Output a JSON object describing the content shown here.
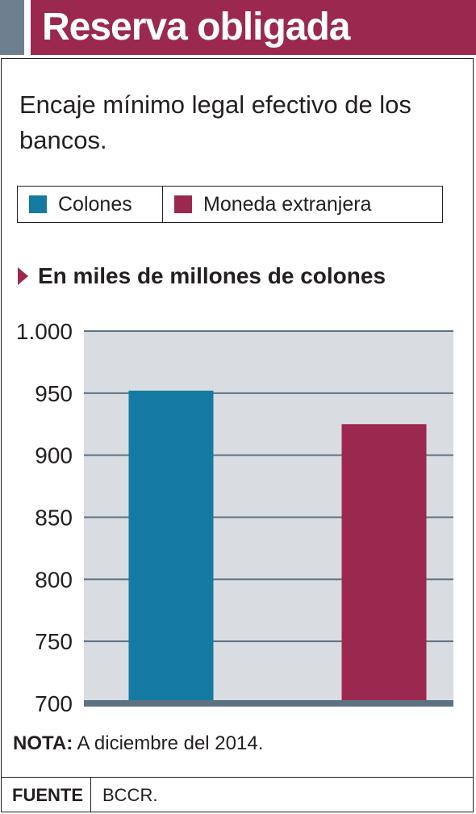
{
  "header": {
    "title": "Reserva obligada"
  },
  "subtitle": "Encaje mínimo legal efectivo de los bancos.",
  "legend": [
    {
      "label": "Colones",
      "color": "#157aa1"
    },
    {
      "label": "Moneda extranjera",
      "color": "#9b284f"
    }
  ],
  "unit_label": "En miles de millones de colones",
  "note": {
    "key": "NOTA:",
    "text": "A diciembre del 2014."
  },
  "source": {
    "key": "FUENTE",
    "value": "BCCR."
  },
  "colors": {
    "header": "#9b284f",
    "accent": "#6d7f8f",
    "plot_bg": "#d9dce1",
    "gridline": "#5c7283"
  },
  "chart_data": {
    "type": "bar",
    "categories": [
      "Colones",
      "Moneda extranjera"
    ],
    "values": [
      952,
      925
    ],
    "colors": [
      "#157aa1",
      "#9b284f"
    ],
    "ylim": [
      700,
      1000
    ],
    "yticks": [
      700,
      750,
      800,
      850,
      900,
      950,
      1000
    ],
    "ytick_labels": [
      "700",
      "750",
      "800",
      "850",
      "900",
      "950",
      "1.000"
    ],
    "grid": true
  }
}
